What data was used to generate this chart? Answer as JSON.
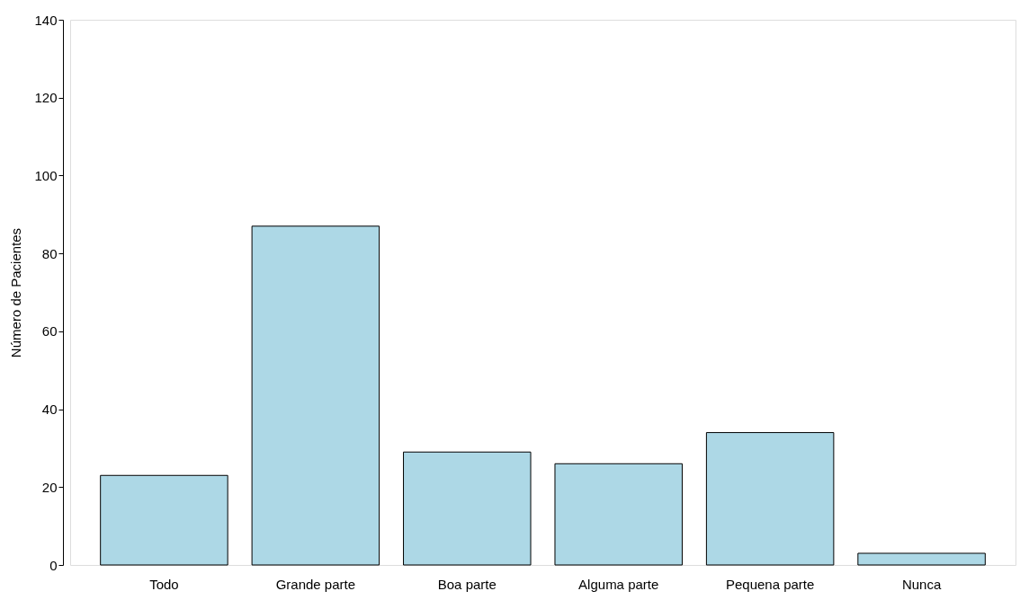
{
  "chart_data": {
    "type": "bar",
    "ylabel": "Número de Pacientes",
    "categories": [
      "Todo",
      "Grande parte",
      "Boa parte",
      "Alguma parte",
      "Pequena parte",
      "Nunca"
    ],
    "values": [
      23,
      87,
      29,
      26,
      34,
      3
    ],
    "color": "#add8e6",
    "ylim": [
      0,
      140
    ],
    "yticks": [
      0,
      20,
      40,
      60,
      80,
      100,
      120,
      140
    ],
    "grid": false
  }
}
